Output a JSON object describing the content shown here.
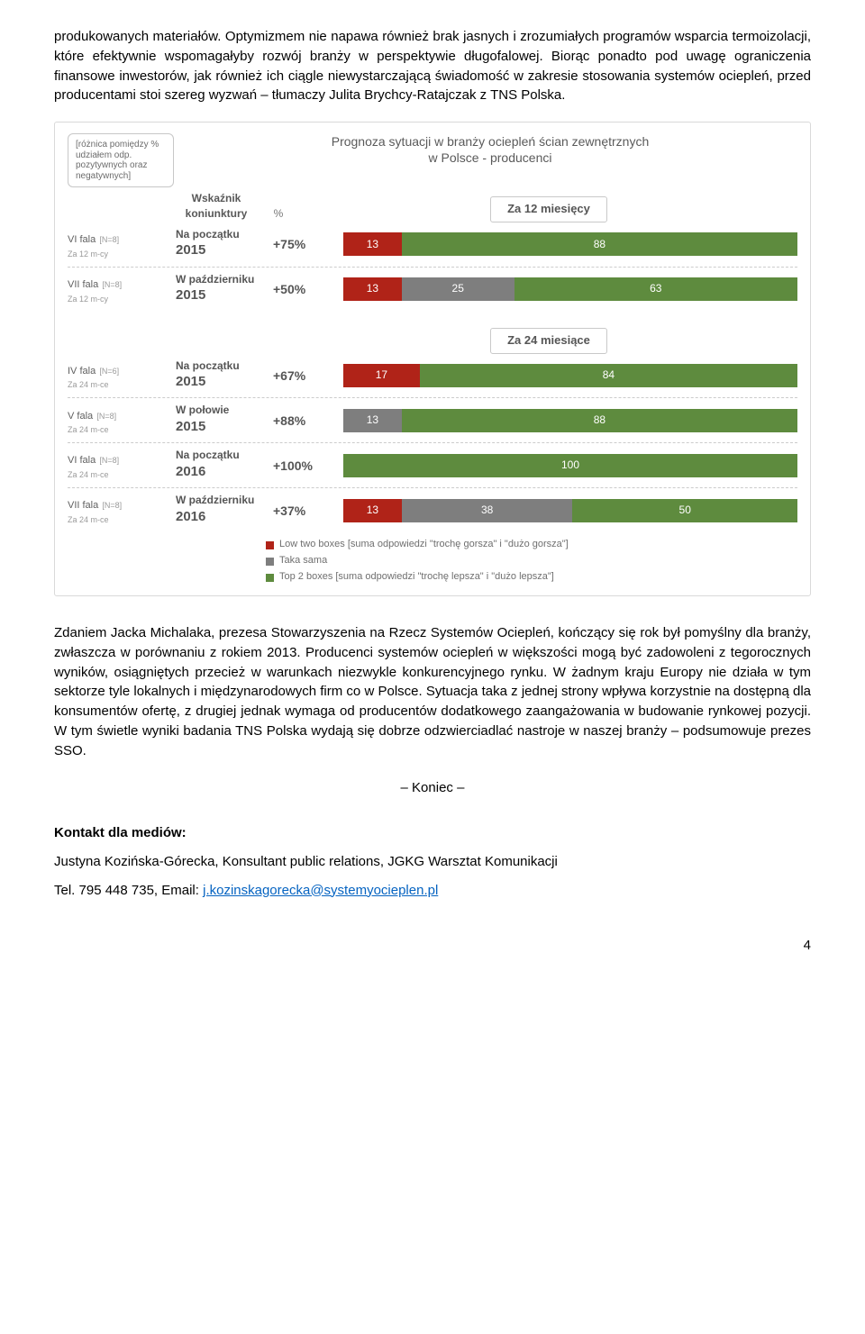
{
  "paragraph1": "produkowanych materiałów. Optymizmem nie napawa również brak jasnych i zrozumiałych programów wsparcia termoizolacji, które efektywnie wspomagałyby rozwój branży w perspektywie długofalowej. Biorąc ponadto pod uwagę ograniczenia finansowe inwestorów, jak również ich ciągle niewystarczającą świadomość w zakresie stosowania systemów ociepleń, przed producentami stoi szereg wyzwań – tłumaczy Julita Brychcy-Ratajczak z TNS Polska.",
  "chart": {
    "title_l1": "Prognoza sytuacji w branży ociepleń ścian zewnętrznych",
    "title_l2": "w Polsce - producenci",
    "note": "[różnica pomiędzy % udziałem odp. pozytywnych oraz negatywnych]",
    "head_idx": "Wskaźnik koniunktury",
    "head_pct": "%",
    "period12": "Za 12 miesięcy",
    "period24": "Za 24 miesiące",
    "colors": {
      "low": "#b02318",
      "same": "#7e7e7e",
      "top": "#5e8b3e",
      "grid": "#cccccc",
      "text": "#646464"
    },
    "rows12": [
      {
        "wave": "VI fala",
        "n": "[N=8]",
        "sub": "Za 12 m-cy",
        "when_top": "Na początku",
        "when_year": "2015",
        "idx": "+75%",
        "segs": [
          {
            "v": 13,
            "c": "#b02318"
          },
          {
            "v": 88,
            "c": "#5e8b3e"
          }
        ],
        "showSame": false
      },
      {
        "wave": "VII fala",
        "n": "[N=8]",
        "sub": "Za 12 m-cy",
        "when_top": "W październiku",
        "when_year": "2015",
        "idx": "+50%",
        "segs": [
          {
            "v": 13,
            "c": "#b02318"
          },
          {
            "v": 25,
            "c": "#7e7e7e"
          },
          {
            "v": 63,
            "c": "#5e8b3e"
          }
        ],
        "showSame": true
      }
    ],
    "rows24": [
      {
        "wave": "IV fala",
        "n": "[N=6]",
        "sub": "Za 24 m-ce",
        "when_top": "Na początku",
        "when_year": "2015",
        "idx": "+67%",
        "segs": [
          {
            "v": 17,
            "c": "#b02318"
          },
          {
            "v": 84,
            "c": "#5e8b3e"
          }
        ]
      },
      {
        "wave": "V fala",
        "n": "[N=8]",
        "sub": "Za 24 m-ce",
        "when_top": "W połowie",
        "when_year": "2015",
        "idx": "+88%",
        "segs": [
          {
            "v": 13,
            "c": "#7e7e7e"
          },
          {
            "v": 88,
            "c": "#5e8b3e"
          }
        ]
      },
      {
        "wave": "VI fala",
        "n": "[N=8]",
        "sub": "Za 24 m-ce",
        "when_top": "Na początku",
        "when_year": "2016",
        "idx": "+100%",
        "segs": [
          {
            "v": 100,
            "c": "#5e8b3e"
          }
        ]
      },
      {
        "wave": "VII fala",
        "n": "[N=8]",
        "sub": "Za 24 m-ce",
        "when_top": "W październiku",
        "when_year": "2016",
        "idx": "+37%",
        "segs": [
          {
            "v": 13,
            "c": "#b02318"
          },
          {
            "v": 38,
            "c": "#7e7e7e"
          },
          {
            "v": 50,
            "c": "#5e8b3e"
          }
        ]
      }
    ],
    "legend": {
      "low": "Low two boxes [suma odpowiedzi \"trochę gorsza\" i \"dużo gorsza\"]",
      "same": "Taka sama",
      "top": "Top 2 boxes [suma odpowiedzi \"trochę lepsza\" i \"dużo lepsza\"]"
    }
  },
  "paragraph2": "Zdaniem Jacka Michalaka, prezesa Stowarzyszenia na Rzecz Systemów Ociepleń, kończący się rok był pomyślny dla branży, zwłaszcza w porównaniu z rokiem 2013. Producenci systemów ociepleń w większości mogą być zadowoleni z tegorocznych wyników, osiągniętych przecież w warunkach niezwykle konkurencyjnego rynku. W żadnym kraju Europy nie działa w tym sektorze tyle lokalnych i międzynarodowych firm co w Polsce. Sytuacja taka z jednej strony wpływa korzystnie na dostępną dla konsumentów ofertę, z drugiej jednak wymaga od producentów dodatkowego zaangażowania w budowanie rynkowej pozycji. W tym świetle wyniki badania TNS Polska wydają się dobrze odzwierciadlać nastroje w naszej branży – podsumowuje prezes SSO.",
  "koniec": "– Koniec –",
  "contact": {
    "heading": "Kontakt dla mediów:",
    "line1": "Justyna Kozińska-Górecka, Konsultant public relations, JGKG Warsztat Komunikacji",
    "line2_prefix": "Tel. 795 448 735, Email: ",
    "email": "j.kozinskagorecka@systemyocieplen.pl"
  },
  "page_num": "4"
}
